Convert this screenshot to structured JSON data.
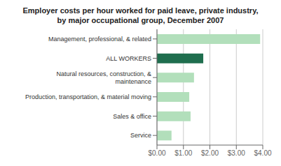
{
  "chart_data": {
    "type": "bar",
    "title": "Employer costs per hour worked for paid leave, private industry,\nby major occupational group, December 2007",
    "categories": [
      "Service",
      "Sales & office",
      "Production, transportation, & material moving",
      "Natural resources, construction, &\nmaintenance",
      "ALL WORKERS",
      "Management, professional, & related"
    ],
    "values": [
      0.55,
      1.27,
      1.22,
      1.4,
      1.75,
      3.9
    ],
    "colors": [
      "#b2dfbb",
      "#b2dfbb",
      "#b2dfbb",
      "#b2dfbb",
      "#1f6e4e",
      "#b2dfbb"
    ],
    "orientation": "horizontal",
    "xlim": [
      0,
      4.0
    ],
    "xticks": [
      {
        "value": 0.0,
        "label": "$0.00"
      },
      {
        "value": 1.0,
        "label": "$1.00"
      },
      {
        "value": 2.0,
        "label": "$2.00"
      },
      {
        "value": 3.0,
        "label": "$3.00"
      },
      {
        "value": 4.0,
        "label": "$4.00"
      }
    ],
    "grid": true
  }
}
